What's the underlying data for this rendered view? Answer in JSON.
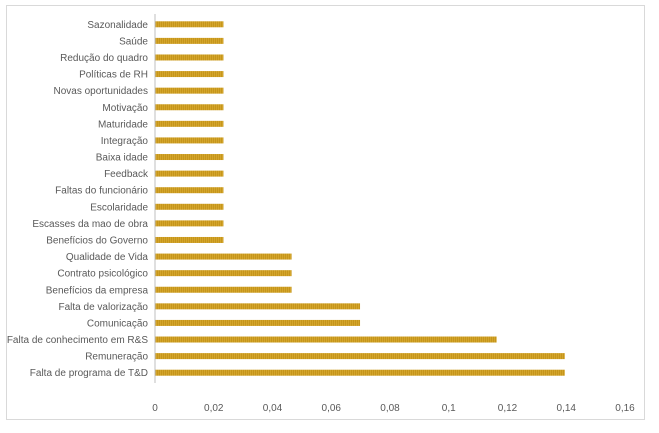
{
  "chart_data": {
    "type": "bar",
    "orientation": "horizontal",
    "title": "",
    "xlabel": "",
    "ylabel": "",
    "xlim": [
      0,
      0.16
    ],
    "grid": false,
    "legend": "none",
    "bar_color": "#D4A52B",
    "categories": [
      "Sazonalidade",
      "Saúde",
      "Redução do quadro",
      "Políticas de RH",
      "Novas oportunidades",
      "Motivação",
      "Maturidade",
      "Integração",
      "Baixa idade",
      "Feedback",
      "Faltas do funcionário",
      "Escolaridade",
      "Escasses da mao de obra",
      "Benefícios do Governo",
      "Qualidade de Vida",
      "Contrato psicológico",
      "Benefícios da empresa",
      "Falta de valorização",
      "Comunicação",
      "Falta de conhecimento em R&S",
      "Remuneração",
      "Falta de programa de T&D"
    ],
    "values": [
      0.0233,
      0.0233,
      0.0233,
      0.0233,
      0.0233,
      0.0233,
      0.0233,
      0.0233,
      0.0233,
      0.0233,
      0.0233,
      0.0233,
      0.0233,
      0.0233,
      0.0465,
      0.0465,
      0.0465,
      0.0698,
      0.0698,
      0.1163,
      0.1395,
      0.1395
    ],
    "x_ticks": [
      0,
      0.02,
      0.04,
      0.06,
      0.08,
      0.1,
      0.12,
      0.14,
      0.16
    ],
    "x_tick_labels": [
      "0",
      "0,02",
      "0,04",
      "0,06",
      "0,08",
      "0,1",
      "0,12",
      "0,14",
      "0,16"
    ]
  }
}
